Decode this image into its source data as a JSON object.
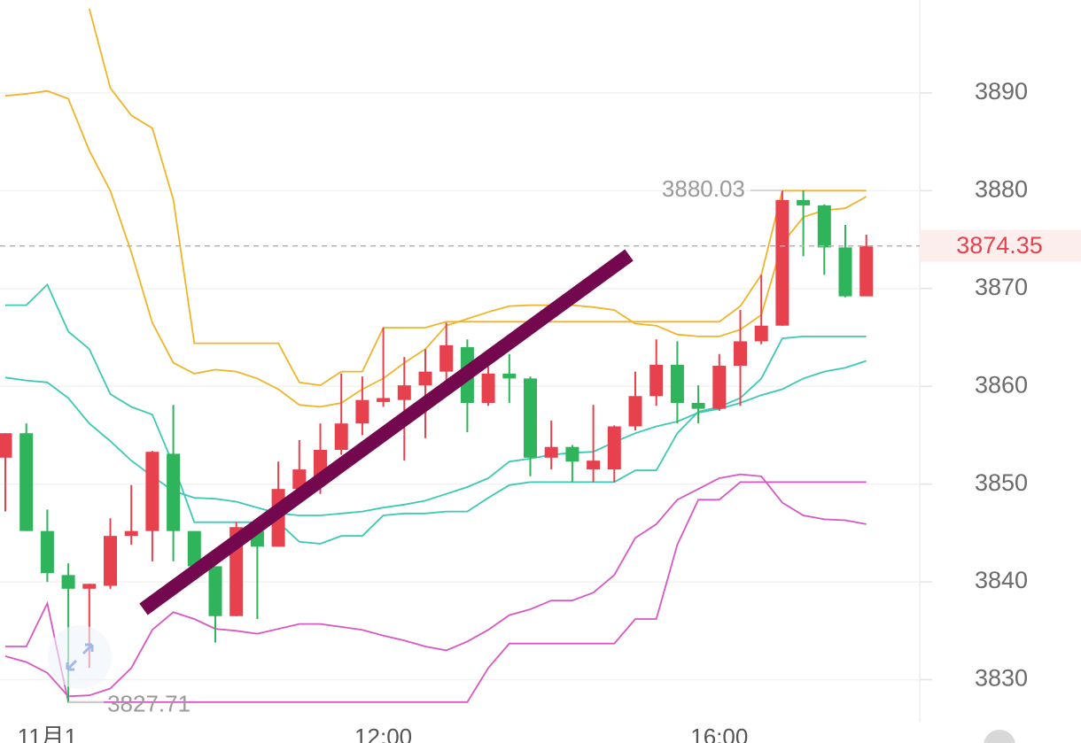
{
  "chart_data": {
    "type": "candlestick",
    "categories": [
      null,
      null,
      "11月1",
      null,
      null,
      null,
      null,
      null,
      null,
      null,
      null,
      null,
      null,
      null,
      null,
      null,
      null,
      null,
      "12:00",
      null,
      null,
      null,
      null,
      null,
      null,
      null,
      null,
      null,
      null,
      null,
      null,
      null,
      null,
      null,
      "16:00",
      null,
      null,
      null,
      null,
      null,
      null,
      null
    ],
    "open": [
      3852.7,
      3855.2,
      3845.2,
      3840.7,
      3839.3,
      3839.6,
      3844.7,
      3845.2,
      3853.1,
      3845.2,
      3841.6,
      3836.5,
      3845.2,
      3843.6,
      3849.5,
      3850.6,
      3853.5,
      3856.2,
      3858.4,
      3858.6,
      3860.1,
      3861.5,
      3864.0,
      3858.3,
      3861.3,
      3860.8,
      3852.7,
      3853.8,
      3851.5,
      3851.5,
      3855.9,
      3859.0,
      3862.2,
      3858.3,
      3857.7,
      3862.1,
      3864.6,
      3866.2,
      3879.05,
      3878.5,
      3874.2,
      3869.2
    ],
    "high": [
      3855.2,
      3856.2,
      3847.4,
      3841.9,
      3839.8,
      3846.5,
      3849.9,
      3853.4,
      3858.1,
      3845.2,
      3841.6,
      3846.1,
      3845.6,
      3852.3,
      3854.5,
      3856.2,
      3861.3,
      3861.0,
      3866.0,
      3863.0,
      3863.8,
      3866.5,
      3864.8,
      3862.0,
      3863.3,
      3861.0,
      3856.5,
      3854.0,
      3858.1,
      3856.0,
      3861.5,
      3864.8,
      3864.6,
      3860.1,
      3863.3,
      3867.8,
      3871.4,
      3880.03,
      3880.03,
      3878.6,
      3876.5,
      3875.5
    ],
    "low": [
      3847.2,
      3845.2,
      3840.0,
      3827.71,
      3831.2,
      3839.3,
      3843.8,
      3842.1,
      3842.1,
      3840.9,
      3833.8,
      3836.5,
      3836.2,
      3843.6,
      3848.5,
      3849.0,
      3853.0,
      3855.0,
      3857.9,
      3852.4,
      3854.7,
      3860.0,
      3855.3,
      3858.0,
      3858.3,
      3850.8,
      3851.5,
      3850.2,
      3850.2,
      3850.2,
      3855.5,
      3858.0,
      3856.2,
      3856.2,
      3857.5,
      3858.0,
      3864.3,
      3866.2,
      3873.3,
      3871.4,
      3869.1,
      3869.2
    ],
    "close": [
      3855.2,
      3845.2,
      3840.9,
      3839.3,
      3839.8,
      3844.7,
      3845.2,
      3853.3,
      3845.2,
      3841.6,
      3836.5,
      3845.6,
      3843.6,
      3849.5,
      3851.5,
      3853.5,
      3856.2,
      3858.6,
      3858.8,
      3860.1,
      3861.5,
      3864.2,
      3858.3,
      3861.3,
      3860.8,
      3852.7,
      3853.8,
      3852.3,
      3852.4,
      3855.9,
      3859.0,
      3862.2,
      3858.3,
      3857.7,
      3862.1,
      3864.6,
      3866.2,
      3879.05,
      3878.5,
      3874.2,
      3869.2,
      3874.35
    ],
    "up_color": "#e8414e",
    "down_color": "#2fb45c",
    "lines": [
      {
        "color": "#f0b429",
        "values": [
          3889.7,
          3889.9,
          3890.2,
          3889.4,
          3884.1,
          3880.0,
          3873.7,
          3866.5,
          3862.4,
          3861.3,
          3861.7,
          3861.5,
          3860.8,
          3859.7,
          3858.1,
          3857.9,
          3858.3,
          3859.7,
          3860.8,
          3862.4,
          3863.8,
          3866.2,
          3866.9,
          3867.6,
          3868.2,
          3868.3,
          3868.3,
          3868.3,
          3868.1,
          3867.8,
          3866.4,
          3866.2,
          3865.3,
          3865.1,
          3865.1,
          3865.8,
          3867.3,
          3874.6,
          3877.3,
          3878.0,
          3878.2,
          3879.4
        ]
      },
      {
        "color": "#f0b429",
        "values": [
          null,
          null,
          null,
          null,
          3898.6,
          3890.5,
          3887.7,
          3886.4,
          3879.1,
          3864.4,
          3864.4,
          3864.4,
          3864.4,
          3864.4,
          3860.4,
          3860.1,
          3861.5,
          3861.5,
          3866.0,
          3866.0,
          3866.0,
          3866.6,
          3866.6,
          3866.6,
          3866.6,
          3866.6,
          3866.6,
          3866.6,
          3866.6,
          3866.6,
          3866.6,
          3866.6,
          3866.6,
          3866.6,
          3866.6,
          3868.2,
          3871.4,
          3880.0,
          3880.0,
          3880.0,
          3880.0,
          3880.0
        ]
      },
      {
        "color": "#3cc9b4",
        "values": [
          3868.3,
          3868.3,
          3870.4,
          3865.6,
          3863.8,
          3859.2,
          3857.9,
          3857.1,
          3852.0,
          3846.1,
          3846.1,
          3846.1,
          3846.1,
          3846.1,
          3844.1,
          3843.9,
          3844.7,
          3844.7,
          3846.8,
          3847.0,
          3847.0,
          3847.2,
          3847.2,
          3848.6,
          3849.9,
          3850.2,
          3850.2,
          3850.2,
          3850.2,
          3850.2,
          3851.4,
          3851.4,
          3855.2,
          3857.4,
          3857.9,
          3858.8,
          3860.8,
          3864.9,
          3865.1,
          3865.1,
          3865.1,
          3865.1
        ]
      },
      {
        "color": "#3cc9b4",
        "values": [
          3860.9,
          3860.6,
          3860.4,
          3858.8,
          3856.2,
          3854.4,
          3852.4,
          3850.8,
          3849.3,
          3848.6,
          3848.5,
          3848.2,
          3847.6,
          3847.0,
          3846.8,
          3846.8,
          3847.0,
          3847.2,
          3847.6,
          3847.9,
          3848.3,
          3849.0,
          3849.7,
          3850.6,
          3852.3,
          3852.6,
          3853.0,
          3853.2,
          3853.3,
          3854.3,
          3855.2,
          3855.9,
          3856.4,
          3857.3,
          3857.7,
          3858.3,
          3859.1,
          3859.7,
          3860.8,
          3861.5,
          3861.9,
          3862.6
        ]
      },
      {
        "color": "#d957c4",
        "values": [
          3832.4,
          3831.8,
          3830.7,
          3828.3,
          3828.4,
          3829.1,
          3831.2,
          3835.1,
          3836.9,
          3836.2,
          3835.2,
          3835.0,
          3834.7,
          3835.2,
          3835.7,
          3835.7,
          3835.4,
          3835.1,
          3834.5,
          3834.0,
          3833.4,
          3833.0,
          3833.9,
          3835.1,
          3836.6,
          3837.2,
          3838.1,
          3838.1,
          3838.9,
          3840.7,
          3844.5,
          3845.9,
          3848.4,
          3849.5,
          3850.6,
          3851.0,
          3850.8,
          3848.1,
          3846.8,
          3846.4,
          3846.3,
          3845.9
        ]
      },
      {
        "color": "#d957c4",
        "values": [
          3833.4,
          3833.4,
          3837.8,
          3827.71,
          3827.71,
          3827.71,
          3827.71,
          3827.71,
          3827.71,
          3827.71,
          3827.71,
          3827.71,
          3827.71,
          3827.71,
          3827.71,
          3827.71,
          3827.71,
          3827.71,
          3827.71,
          3827.71,
          3827.71,
          3827.71,
          3827.71,
          3831.2,
          3833.7,
          3833.7,
          3833.7,
          3833.7,
          3833.7,
          3833.7,
          3836.2,
          3836.2,
          3843.8,
          3848.4,
          3848.4,
          3850.2,
          3850.2,
          3850.2,
          3850.2,
          3850.2,
          3850.2,
          3850.2
        ]
      }
    ],
    "ylim": [
      3825.7,
      3899.5
    ],
    "yticks": [
      3830,
      3840,
      3850,
      3860,
      3870,
      3880,
      3890
    ],
    "grid": true,
    "annotations": {
      "max": 3880.03,
      "min": 3827.71,
      "last": 3874.35
    },
    "last_color": "#e8414e"
  }
}
